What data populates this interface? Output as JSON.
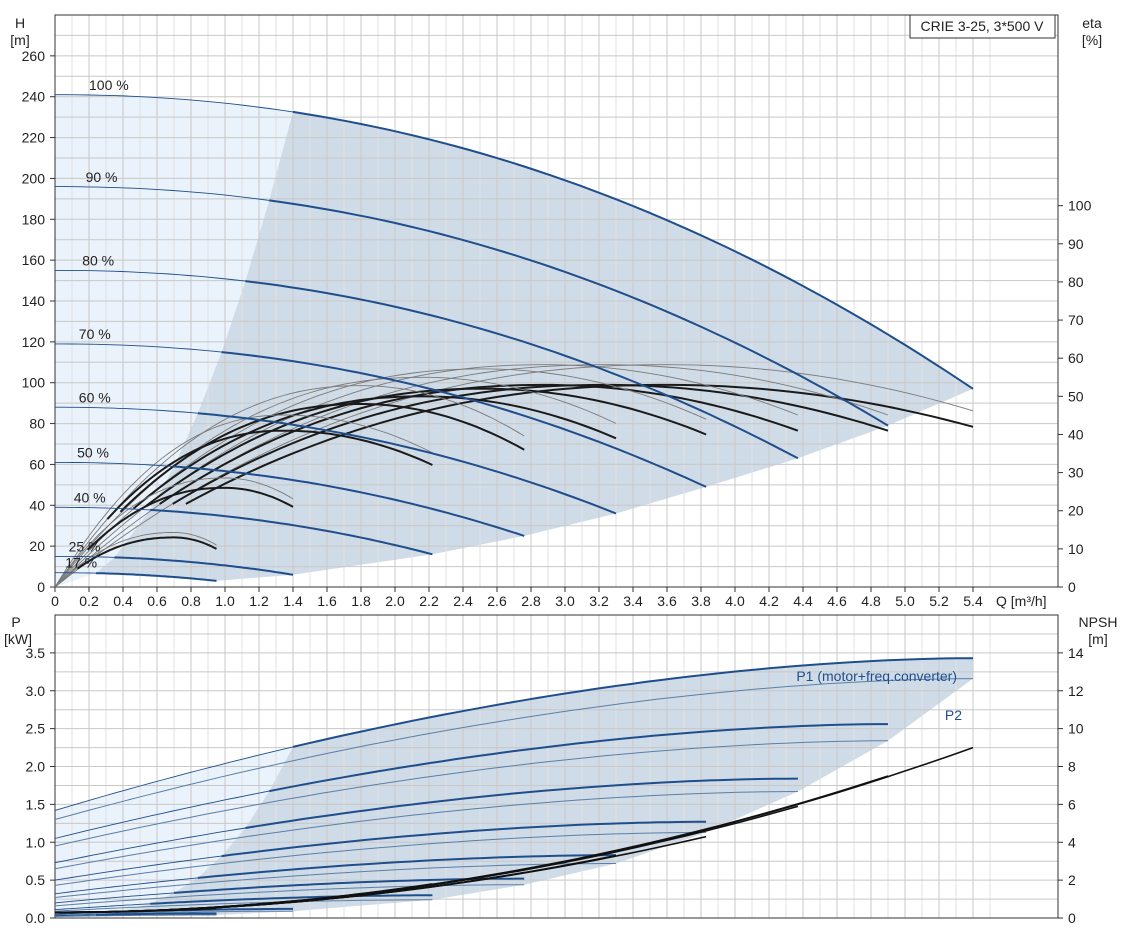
{
  "chart_data": [
    {
      "type": "line",
      "name": "head-efficiency",
      "pump_label": "CRIE 3-25, 3*500 V",
      "left_axis": {
        "name": "H",
        "unit": "[m]",
        "ylim": [
          0,
          280
        ],
        "ticks": [
          0,
          20,
          40,
          60,
          80,
          100,
          120,
          140,
          160,
          180,
          200,
          220,
          240,
          260
        ]
      },
      "right_axis": {
        "name": "eta",
        "unit": "[%]",
        "ylim": [
          0,
          150
        ],
        "ticks": [
          0,
          10,
          20,
          30,
          40,
          50,
          60,
          70,
          80,
          90,
          100
        ]
      },
      "x_axis": {
        "label": "Q [m³/h]",
        "xlim": [
          0,
          5.9
        ],
        "ticks": [
          0,
          0.2,
          0.4,
          0.6,
          0.8,
          1.0,
          1.2,
          1.4,
          1.6,
          1.8,
          2.0,
          2.2,
          2.4,
          2.6,
          2.8,
          3.0,
          3.2,
          3.4,
          3.6,
          3.8,
          4.0,
          4.2,
          4.4,
          4.6,
          4.8,
          5.0,
          5.2,
          5.4
        ]
      },
      "speed_labels": [
        "100 %",
        "90 %",
        "80 %",
        "70 %",
        "60 %",
        "50 %",
        "40 %",
        "25 %",
        "17 %"
      ],
      "head_curves": [
        {
          "speed": "100 %",
          "shutoff_head": 241,
          "q_max": 5.4,
          "h_end": 97,
          "bold_from_q": 1.4
        },
        {
          "speed": "90 %",
          "shutoff_head": 196,
          "q_max": 4.9,
          "h_end": 79,
          "bold_from_q": 1.26
        },
        {
          "speed": "80 %",
          "shutoff_head": 155,
          "q_max": 4.37,
          "h_end": 63,
          "bold_from_q": 1.12
        },
        {
          "speed": "70 %",
          "shutoff_head": 119,
          "q_max": 3.83,
          "h_end": 49,
          "bold_from_q": 0.98
        },
        {
          "speed": "60 %",
          "shutoff_head": 88,
          "q_max": 3.3,
          "h_end": 36,
          "bold_from_q": 0.84
        },
        {
          "speed": "50 %",
          "shutoff_head": 61,
          "q_max": 2.76,
          "h_end": 25,
          "bold_from_q": 0.7
        },
        {
          "speed": "40 %",
          "shutoff_head": 39,
          "q_max": 2.22,
          "h_end": 16,
          "bold_from_q": 0.56
        },
        {
          "speed": "25 %",
          "shutoff_head": 15,
          "q_max": 1.4,
          "h_end": 6,
          "bold_from_q": 0.35
        },
        {
          "speed": "17 %",
          "shutoff_head": 7,
          "q_max": 0.95,
          "h_end": 3,
          "bold_from_q": 0.24
        }
      ],
      "eta_curves": [
        {
          "speed": "100 %",
          "q_peak": 3.6,
          "eta_peak": 53,
          "q_max": 5.4,
          "eta_end": 42
        },
        {
          "speed": "90 %",
          "q_peak": 3.24,
          "eta_peak": 53,
          "q_max": 4.9,
          "eta_end": 41
        },
        {
          "speed": "80 %",
          "q_peak": 2.88,
          "eta_peak": 53,
          "q_max": 4.37,
          "eta_end": 41
        },
        {
          "speed": "70 %",
          "q_peak": 2.52,
          "eta_peak": 52,
          "q_max": 3.83,
          "eta_end": 40
        },
        {
          "speed": "60 %",
          "q_peak": 2.16,
          "eta_peak": 50,
          "q_max": 3.3,
          "eta_end": 39
        },
        {
          "speed": "50 %",
          "q_peak": 1.8,
          "eta_peak": 48,
          "q_max": 2.76,
          "eta_end": 36
        },
        {
          "speed": "40 %",
          "q_peak": 1.35,
          "eta_peak": 41,
          "q_max": 2.22,
          "eta_end": 32
        },
        {
          "speed": "25 %",
          "q_peak": 1.0,
          "eta_peak": 26,
          "q_max": 1.4,
          "eta_end": 21
        },
        {
          "speed": "17 %",
          "q_peak": 0.7,
          "eta_peak": 13,
          "q_max": 0.95,
          "eta_end": 10
        }
      ]
    },
    {
      "type": "line",
      "name": "power-npsh",
      "left_axis": {
        "name": "P",
        "unit": "[kW]",
        "ylim": [
          0,
          4.0
        ],
        "ticks": [
          0.0,
          0.5,
          1.0,
          1.5,
          2.0,
          2.5,
          3.0,
          3.5
        ]
      },
      "right_axis": {
        "name": "NPSH",
        "unit": "[m]",
        "ylim": [
          0,
          16
        ],
        "ticks": [
          0,
          2,
          4,
          6,
          8,
          10,
          12,
          14
        ]
      },
      "x_axis": {
        "xlim": [
          0,
          5.9
        ]
      },
      "series_labels": {
        "p1": "P1 (motor+freq.converter)",
        "p2": "P2"
      },
      "p1_curves": [
        {
          "speed": "100 %",
          "p_start": 1.42,
          "q_max": 5.4,
          "p_end": 3.43,
          "bold_from_q": 1.4
        },
        {
          "speed": "90 %",
          "p_start": 1.05,
          "q_max": 4.9,
          "p_end": 2.56,
          "bold_from_q": 1.26
        },
        {
          "speed": "80 %",
          "p_start": 0.73,
          "q_max": 4.37,
          "p_end": 1.84,
          "bold_from_q": 1.12
        },
        {
          "speed": "70 %",
          "p_start": 0.5,
          "q_max": 3.83,
          "p_end": 1.27,
          "bold_from_q": 0.98
        },
        {
          "speed": "60 %",
          "p_start": 0.32,
          "q_max": 3.3,
          "p_end": 0.83,
          "bold_from_q": 0.84
        },
        {
          "speed": "50 %",
          "p_start": 0.2,
          "q_max": 2.76,
          "p_end": 0.52,
          "bold_from_q": 0.7
        },
        {
          "speed": "40 %",
          "p_start": 0.11,
          "q_max": 2.22,
          "p_end": 0.3,
          "bold_from_q": 0.56
        },
        {
          "speed": "25 %",
          "p_start": 0.05,
          "q_max": 1.4,
          "p_end": 0.12,
          "bold_from_q": 0.35
        },
        {
          "speed": "17 %",
          "p_start": 0.03,
          "q_max": 0.95,
          "p_end": 0.06,
          "bold_from_q": 0.24
        }
      ],
      "p2_curves": [
        {
          "speed": "100 %",
          "p_start": 1.3,
          "q_max": 5.4,
          "p_end": 3.16
        },
        {
          "speed": "90 %",
          "p_start": 0.95,
          "q_max": 4.9,
          "p_end": 2.34
        },
        {
          "speed": "80 %",
          "p_start": 0.65,
          "q_max": 4.37,
          "p_end": 1.67
        },
        {
          "speed": "70 %",
          "p_start": 0.43,
          "q_max": 3.83,
          "p_end": 1.13
        },
        {
          "speed": "60 %",
          "p_start": 0.27,
          "q_max": 3.3,
          "p_end": 0.72
        },
        {
          "speed": "50 %",
          "p_start": 0.16,
          "q_max": 2.76,
          "p_end": 0.44
        },
        {
          "speed": "40 %",
          "p_start": 0.09,
          "q_max": 2.22,
          "p_end": 0.24
        },
        {
          "speed": "25 %",
          "p_start": 0.04,
          "q_max": 1.4,
          "p_end": 0.09
        },
        {
          "speed": "17 %",
          "p_start": 0.02,
          "q_max": 0.95,
          "p_end": 0.04
        }
      ],
      "npsh_curves": [
        {
          "speed": "100 %",
          "q_max": 5.4,
          "npsh_end": 9.0
        },
        {
          "speed": "90 %",
          "q_max": 4.9,
          "npsh_end": 7.5
        },
        {
          "speed": "80 %",
          "q_max": 4.37,
          "npsh_end": 5.9
        },
        {
          "speed": "70 %",
          "q_max": 3.83,
          "npsh_end": 4.3
        },
        {
          "speed": "60 %",
          "q_max": 3.3,
          "npsh_end": 3.3
        },
        {
          "speed": "50 %",
          "q_max": 2.76,
          "npsh_end": 2.4
        },
        {
          "speed": "40 %",
          "q_max": 2.22,
          "npsh_end": 1.8
        },
        {
          "speed": "25 %",
          "q_max": 1.4,
          "npsh_end": 0.9
        },
        {
          "speed": "17 %",
          "q_max": 0.95,
          "npsh_end": 0.5
        }
      ]
    }
  ]
}
